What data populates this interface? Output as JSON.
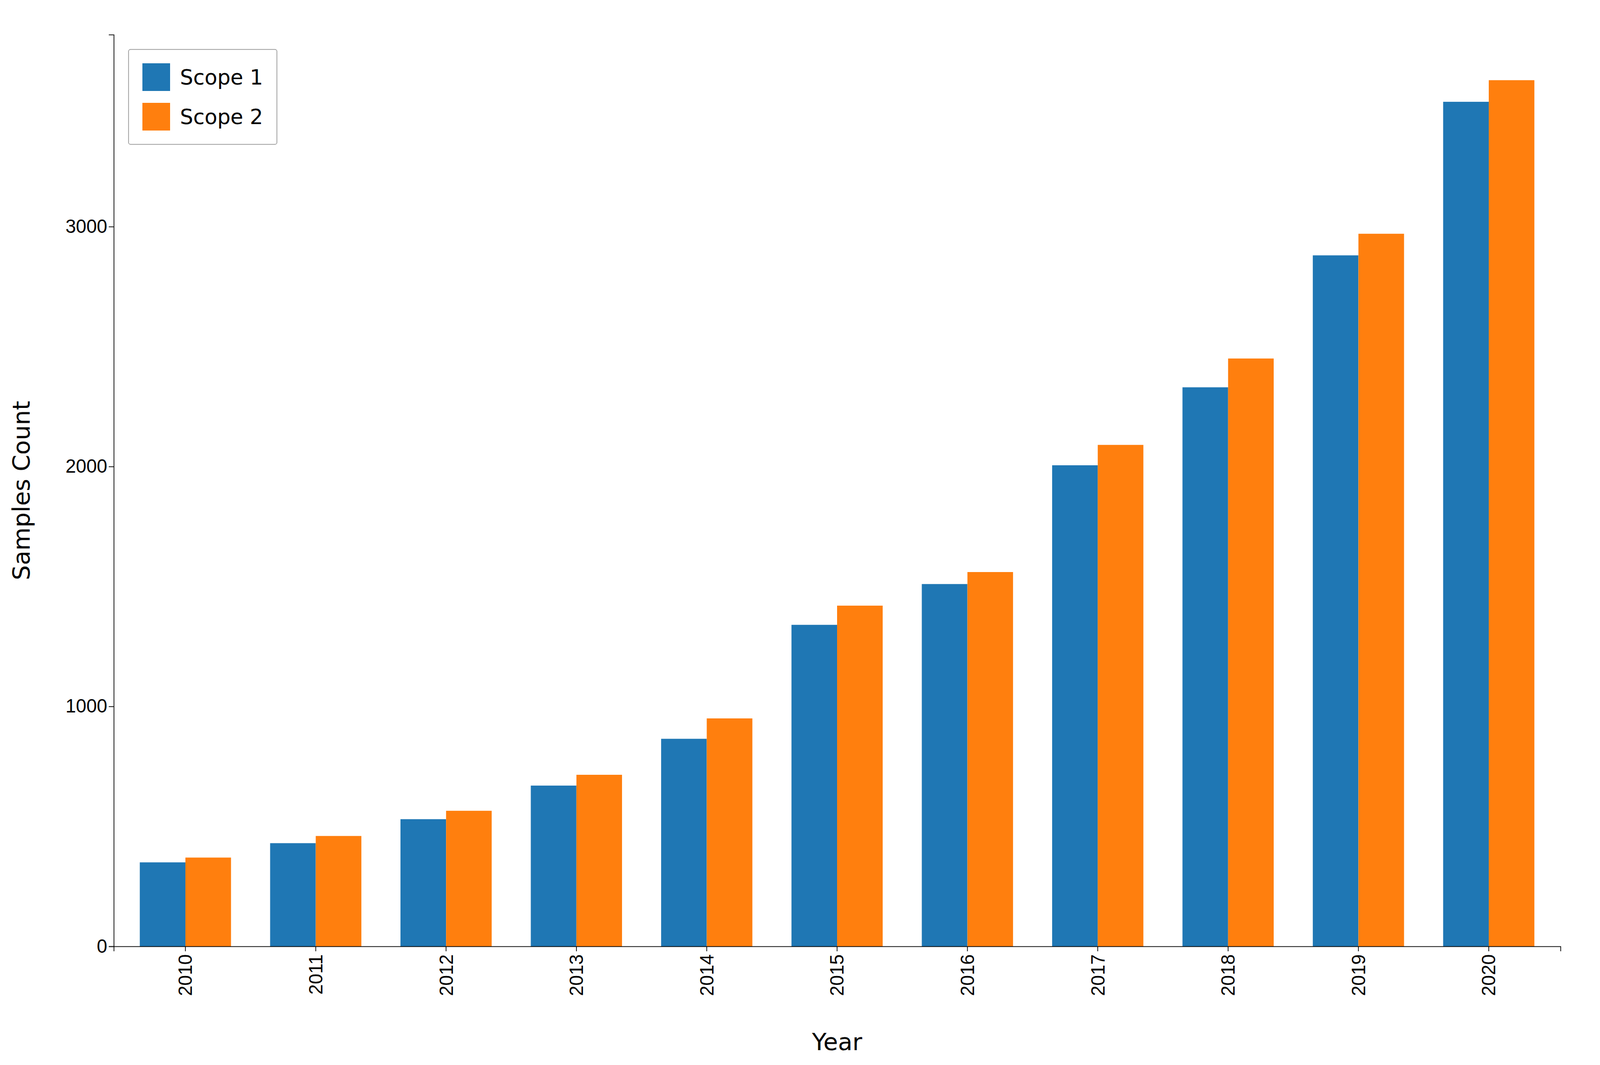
{
  "chart_data": {
    "type": "bar",
    "xlabel": "Year",
    "ylabel": "Samples Count",
    "categories": [
      "2010",
      "2011",
      "2012",
      "2013",
      "2014",
      "2015",
      "2016",
      "2017",
      "2018",
      "2019",
      "2020"
    ],
    "series": [
      {
        "name": "Scope 1",
        "values": [
          350,
          430,
          530,
          670,
          865,
          1340,
          1510,
          2005,
          2330,
          2880,
          3520
        ]
      },
      {
        "name": "Scope 2",
        "values": [
          370,
          460,
          565,
          715,
          950,
          1420,
          1560,
          2090,
          2450,
          2970,
          3610
        ]
      }
    ],
    "ylim": [
      0,
      3800
    ],
    "yticks": [
      0,
      1000,
      2000,
      3000
    ],
    "legend": "upper left",
    "grid": false
  }
}
